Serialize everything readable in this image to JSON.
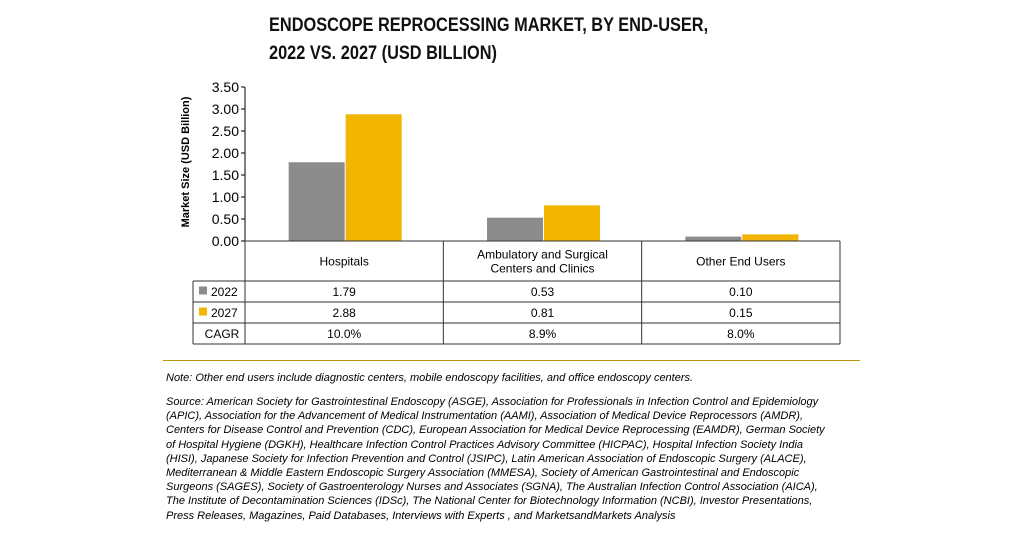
{
  "title_lines": [
    "ENDOSCOPE REPROCESSING MARKET, BY END-USER,",
    "2022 VS. 2027 (USD BILLION)"
  ],
  "colors": {
    "series_2022": "#8c8c8c",
    "series_2027": "#f2b500",
    "rule": "#b8960c"
  },
  "chart_data": {
    "type": "bar",
    "title": "ENDOSCOPE REPROCESSING MARKET, BY END-USER, 2022 VS. 2027 (USD BILLION)",
    "ylabel": "Market Size (USD Billion)",
    "ylim": [
      0,
      3.5
    ],
    "yticks": [
      "0.00",
      "0.50",
      "1.00",
      "1.50",
      "2.00",
      "2.50",
      "3.00",
      "3.50"
    ],
    "categories": [
      [
        "Hospitals"
      ],
      [
        "Ambulatory and Surgical",
        "Centers and Clinics"
      ],
      [
        "Other End Users"
      ]
    ],
    "series": [
      {
        "name": "2022",
        "values": [
          1.79,
          0.53,
          0.1
        ],
        "labels": [
          "1.79",
          "0.53",
          "0.10"
        ]
      },
      {
        "name": "2027",
        "values": [
          2.88,
          0.81,
          0.15
        ],
        "labels": [
          "2.88",
          "0.81",
          "0.15"
        ]
      }
    ],
    "cagr_label": "CAGR",
    "cagr": [
      "10.0%",
      "8.9%",
      "8.0%"
    ],
    "grid": false,
    "legend": "data-table"
  },
  "note": "Note: Other end users include diagnostic centers, mobile endoscopy facilities, and office endoscopy centers.",
  "source_lines": [
    "Source: American Society for Gastrointestinal Endoscopy (ASGE), Association for Professionals in Infection Control and Epidemiology",
    "(APIC), Association for the Advancement of Medical Instrumentation (AAMI), Association of Medical Device Reprocessors (AMDR),",
    "Centers for Disease Control and Prevention (CDC), European Association for Medical Device Reprocessing (EAMDR), German Society",
    "of Hospital Hygiene (DGKH), Healthcare Infection Control Practices Advisory Committee (HICPAC), Hospital Infection Society India",
    "(HISI), Japanese Society for Infection Prevention and Control (JSIPC), Latin American Association of Endoscopic Surgery (ALACE),",
    "Mediterranean & Middle Eastern Endoscopic Surgery Association (MMESA), Society of American Gastrointestinal and Endoscopic",
    "Surgeons (SAGES), Society of Gastroenterology Nurses and Associates (SGNA), The Australian Infection Control Association (AICA),",
    "The Institute of Decontamination Sciences (IDSc), The National Center for Biotechnology Information (NCBI), Investor Presentations,",
    "Press Releases, Magazines, Paid Databases, Interviews with Experts , and MarketsandMarkets Analysis"
  ]
}
